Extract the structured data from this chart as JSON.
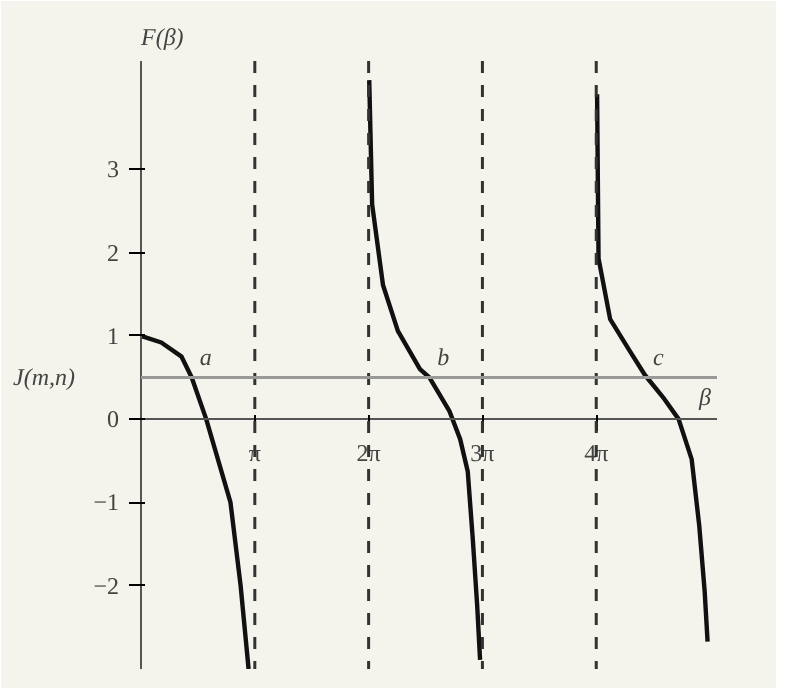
{
  "chart_data": {
    "type": "line",
    "xlabel": "β",
    "ylabel": "F(β)",
    "xlim": [
      0,
      15.9
    ],
    "ylim": [
      -3,
      4.3
    ],
    "xticks": [
      {
        "value": 3.1416,
        "label": "π"
      },
      {
        "value": 6.2832,
        "label": "2π"
      },
      {
        "value": 9.4248,
        "label": "3π"
      },
      {
        "value": 12.5664,
        "label": "4π"
      }
    ],
    "yticks": [
      -2,
      -1,
      0,
      1,
      2,
      3
    ],
    "grid": false,
    "line_style": "solid",
    "series": [
      {
        "color": "#111111",
        "x": [
          0,
          0.56,
          1.12,
          1.4,
          1.8,
          2.47,
          2.75,
          2.97
        ],
        "values": [
          1.0,
          0.92,
          0.75,
          0.5,
          0.0,
          -1.0,
          -2.0,
          -3.0
        ]
      },
      {
        "color": "#111111",
        "x": [
          6.3,
          6.38,
          6.68,
          7.09,
          7.7,
          7.96,
          8.51,
          8.81,
          9.02,
          9.16,
          9.28,
          9.36
        ],
        "values": [
          4.07,
          2.58,
          1.61,
          1.06,
          0.6,
          0.5,
          0.1,
          -0.24,
          -0.63,
          -1.45,
          -2.24,
          -2.89
        ]
      },
      {
        "color": "#111111",
        "x": [
          12.59,
          12.63,
          12.95,
          13.49,
          13.91,
          14.45,
          14.84,
          15.2,
          15.41,
          15.56,
          15.64
        ],
        "values": [
          3.9,
          1.93,
          1.2,
          0.82,
          0.53,
          0.24,
          0.0,
          -0.48,
          -1.28,
          -2.07,
          -2.67
        ]
      }
    ],
    "ref_lines": [
      {
        "axis": "x",
        "value": 3.1416,
        "color": "#333333",
        "line_style": "dashed"
      },
      {
        "axis": "x",
        "value": 6.2832,
        "color": "#333333",
        "line_style": "dashed"
      },
      {
        "axis": "x",
        "value": 9.4248,
        "color": "#333333",
        "line_style": "dashed"
      },
      {
        "axis": "x",
        "value": 12.5664,
        "color": "#333333",
        "line_style": "dashed"
      },
      {
        "axis": "y",
        "value": 0.5,
        "label": "J(m,n)",
        "color": "#999999",
        "line_style": "solid"
      }
    ],
    "annotations": [
      {
        "text": "a",
        "x": 1.4,
        "y": 0.5
      },
      {
        "text": "b",
        "x": 7.96,
        "y": 0.5
      },
      {
        "text": "c",
        "x": 13.91,
        "y": 0.5
      }
    ]
  }
}
